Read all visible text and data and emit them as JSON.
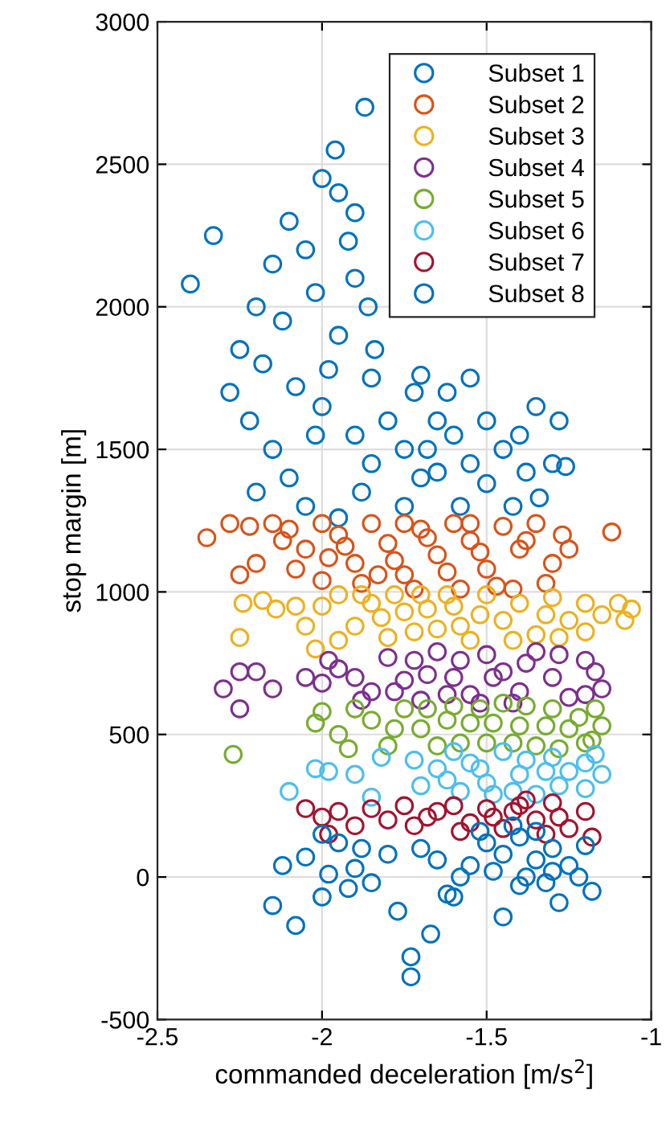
{
  "chart_data": {
    "type": "scatter",
    "xlabel": "commanded deceleration [m/s$^{2}$]",
    "ylabel": "stop margin [m]",
    "xlim": [
      -2.5,
      -1
    ],
    "xticks": [
      -2.5,
      -2,
      -1.5,
      -1
    ],
    "ylim": [
      -500,
      3000
    ],
    "yticks": [
      -500,
      0,
      500,
      1000,
      1500,
      2000,
      2500,
      3000
    ],
    "grid": true,
    "legend": "top right",
    "marker": "circle",
    "series": [
      {
        "name": "Subset 1",
        "color": "#0072bd",
        "x": [
          -2.4,
          -1.87,
          -1.96,
          -2.33,
          -2.25,
          -2.28,
          -2.2,
          -2.15,
          -2.1,
          -2.0,
          -1.95,
          -1.9,
          -2.05,
          -2.12,
          -2.18,
          -2.22,
          -2.15,
          -2.1,
          -2.2,
          -2.05,
          -1.95,
          -2.0,
          -1.95,
          -1.9,
          -1.85,
          -1.8,
          -1.75,
          -1.7,
          -1.85,
          -1.9,
          -1.84,
          -1.86,
          -1.72,
          -1.65,
          -1.6,
          -1.55,
          -1.5,
          -1.45,
          -1.4,
          -1.35,
          -1.3,
          -1.28,
          -1.34,
          -1.42,
          -1.58,
          -1.62,
          -1.55,
          -1.68,
          -1.75,
          -1.88,
          -2.02,
          -1.98,
          -2.08,
          -1.92,
          -2.02,
          -1.7,
          -1.65,
          -1.5,
          -1.38,
          -1.26
        ],
        "values": [
          2080,
          2700,
          2550,
          2250,
          1850,
          1700,
          2000,
          2150,
          2300,
          2450,
          2400,
          2330,
          2200,
          1950,
          1800,
          1600,
          1500,
          1400,
          1350,
          1300,
          1260,
          1650,
          1900,
          2100,
          1750,
          1600,
          1500,
          1400,
          1450,
          1550,
          1850,
          2000,
          1700,
          1600,
          1550,
          1450,
          1380,
          1500,
          1550,
          1650,
          1450,
          1600,
          1330,
          1300,
          1300,
          1700,
          1750,
          1500,
          1300,
          1350,
          1550,
          1780,
          1720,
          2230,
          2050,
          1760,
          1420,
          1600,
          1420,
          1440
        ]
      },
      {
        "name": "Subset 2",
        "color": "#d95319",
        "x": [
          -2.35,
          -2.28,
          -2.22,
          -2.15,
          -2.1,
          -2.25,
          -2.2,
          -2.05,
          -2.0,
          -1.95,
          -1.9,
          -1.85,
          -1.8,
          -1.75,
          -1.7,
          -1.65,
          -1.6,
          -1.55,
          -1.5,
          -1.45,
          -1.4,
          -1.35,
          -1.3,
          -1.27,
          -1.32,
          -1.42,
          -1.58,
          -1.72,
          -1.88,
          -2.0,
          -2.08,
          -1.98,
          -1.83,
          -1.68,
          -1.52,
          -1.38,
          -1.62,
          -1.47,
          -1.78,
          -1.93,
          -2.12,
          -1.12,
          -1.25,
          -1.55,
          -1.75
        ],
        "values": [
          1190,
          1240,
          1230,
          1240,
          1220,
          1060,
          1100,
          1150,
          1240,
          1200,
          1100,
          1240,
          1170,
          1060,
          1220,
          1130,
          1240,
          1180,
          1080,
          1230,
          1150,
          1240,
          1100,
          1200,
          1030,
          1010,
          1010,
          1010,
          1030,
          1040,
          1080,
          1120,
          1060,
          1190,
          1140,
          1180,
          1070,
          1020,
          1110,
          1160,
          1180,
          1210,
          1150,
          1240,
          1240
        ]
      },
      {
        "name": "Subset 3",
        "color": "#edb120",
        "x": [
          -2.24,
          -2.18,
          -2.14,
          -2.25,
          -2.05,
          -2.0,
          -1.95,
          -1.9,
          -1.85,
          -1.8,
          -1.75,
          -1.7,
          -1.65,
          -1.6,
          -1.55,
          -1.5,
          -1.45,
          -1.4,
          -1.35,
          -1.3,
          -1.25,
          -1.2,
          -1.15,
          -1.1,
          -1.06,
          -1.08,
          -1.2,
          -1.95,
          -2.02,
          -1.72,
          -1.52,
          -1.62,
          -1.42,
          -1.82,
          -1.88,
          -1.32,
          -1.28,
          -1.58,
          -1.68,
          -1.78,
          -2.08
        ],
        "values": [
          960,
          970,
          940,
          840,
          880,
          950,
          990,
          880,
          960,
          840,
          930,
          990,
          870,
          950,
          830,
          990,
          900,
          960,
          850,
          980,
          900,
          960,
          920,
          960,
          940,
          900,
          860,
          830,
          800,
          860,
          920,
          990,
          830,
          910,
          990,
          920,
          840,
          880,
          940,
          990,
          950
        ]
      },
      {
        "name": "Subset 4",
        "color": "#7e2f8e",
        "x": [
          -2.25,
          -2.3,
          -2.2,
          -2.15,
          -2.25,
          -2.0,
          -1.95,
          -1.9,
          -1.85,
          -1.8,
          -1.75,
          -1.7,
          -1.65,
          -1.6,
          -1.55,
          -1.5,
          -1.45,
          -1.4,
          -1.35,
          -1.3,
          -1.25,
          -1.2,
          -1.17,
          -1.15,
          -1.2,
          -1.98,
          -1.88,
          -1.72,
          -1.62,
          -1.48,
          -1.38,
          -1.28,
          -1.52,
          -1.78,
          -1.58,
          -1.42,
          -1.68,
          -2.05
        ],
        "values": [
          720,
          660,
          720,
          660,
          590,
          680,
          730,
          700,
          650,
          770,
          690,
          620,
          790,
          700,
          640,
          780,
          720,
          650,
          790,
          700,
          630,
          760,
          720,
          660,
          640,
          760,
          620,
          760,
          640,
          700,
          750,
          780,
          610,
          650,
          760,
          610,
          710,
          700
        ]
      },
      {
        "name": "Subset 5",
        "color": "#77ac30",
        "x": [
          -2.27,
          -2.02,
          -2.0,
          -1.95,
          -1.9,
          -1.85,
          -1.8,
          -1.75,
          -1.7,
          -1.65,
          -1.6,
          -1.55,
          -1.5,
          -1.45,
          -1.4,
          -1.35,
          -1.3,
          -1.25,
          -1.2,
          -1.17,
          -1.15,
          -1.18,
          -1.92,
          -1.78,
          -1.62,
          -1.48,
          -1.38,
          -1.28,
          -1.52,
          -1.68,
          -1.42,
          -1.58,
          -1.32,
          -1.22
        ],
        "values": [
          430,
          540,
          580,
          500,
          590,
          550,
          460,
          590,
          520,
          460,
          600,
          540,
          470,
          610,
          530,
          460,
          590,
          520,
          470,
          590,
          530,
          480,
          450,
          520,
          550,
          540,
          600,
          450,
          590,
          590,
          470,
          470,
          530,
          560
        ]
      },
      {
        "name": "Subset 6",
        "color": "#4dbeee",
        "x": [
          -2.1,
          -2.02,
          -1.98,
          -1.9,
          -1.85,
          -1.82,
          -1.72,
          -1.7,
          -1.65,
          -1.6,
          -1.55,
          -1.5,
          -1.45,
          -1.4,
          -1.35,
          -1.3,
          -1.25,
          -1.2,
          -1.17,
          -1.15,
          -1.2,
          -1.48,
          -1.58,
          -1.38,
          -1.28,
          -1.52,
          -1.42,
          -1.62,
          -1.32
        ],
        "values": [
          300,
          380,
          370,
          360,
          280,
          420,
          410,
          320,
          380,
          440,
          400,
          330,
          440,
          360,
          290,
          420,
          370,
          310,
          430,
          360,
          400,
          290,
          300,
          410,
          320,
          380,
          300,
          340,
          370
        ]
      },
      {
        "name": "Subset 7",
        "color": "#a2142f",
        "x": [
          -2.05,
          -2.0,
          -1.95,
          -1.9,
          -1.85,
          -1.8,
          -1.75,
          -1.72,
          -1.65,
          -1.6,
          -1.55,
          -1.5,
          -1.45,
          -1.4,
          -1.35,
          -1.3,
          -1.25,
          -1.2,
          -1.18,
          -1.48,
          -1.38,
          -1.28,
          -1.42,
          -1.32,
          -1.58,
          -1.68,
          -1.98
        ],
        "values": [
          240,
          210,
          230,
          180,
          240,
          200,
          250,
          180,
          230,
          250,
          190,
          240,
          170,
          250,
          200,
          260,
          170,
          230,
          140,
          210,
          270,
          210,
          230,
          150,
          160,
          210,
          150
        ]
      },
      {
        "name": "Subset 8",
        "color": "#0072bd",
        "x": [
          -2.12,
          -2.05,
          -2.0,
          -1.95,
          -1.9,
          -1.85,
          -1.8,
          -1.77,
          -1.73,
          -1.73,
          -1.67,
          -1.65,
          -1.6,
          -1.55,
          -1.5,
          -1.45,
          -1.45,
          -1.4,
          -1.35,
          -1.3,
          -1.28,
          -1.25,
          -1.22,
          -1.18,
          -1.2,
          -1.32,
          -1.38,
          -1.48,
          -1.52,
          -1.42,
          -1.35,
          -2.08,
          -2.15,
          -1.98,
          -1.88,
          -1.92,
          -1.7,
          -1.62,
          -1.58,
          -1.3,
          -1.4,
          -2.0
        ],
        "values": [
          40,
          70,
          -70,
          120,
          30,
          -20,
          80,
          -120,
          -280,
          -350,
          -200,
          60,
          -70,
          40,
          120,
          -140,
          80,
          140,
          60,
          100,
          -90,
          40,
          0,
          -50,
          110,
          -20,
          0,
          20,
          160,
          180,
          160,
          -170,
          -100,
          10,
          100,
          -40,
          100,
          -60,
          0,
          20,
          -30,
          150
        ]
      }
    ]
  }
}
